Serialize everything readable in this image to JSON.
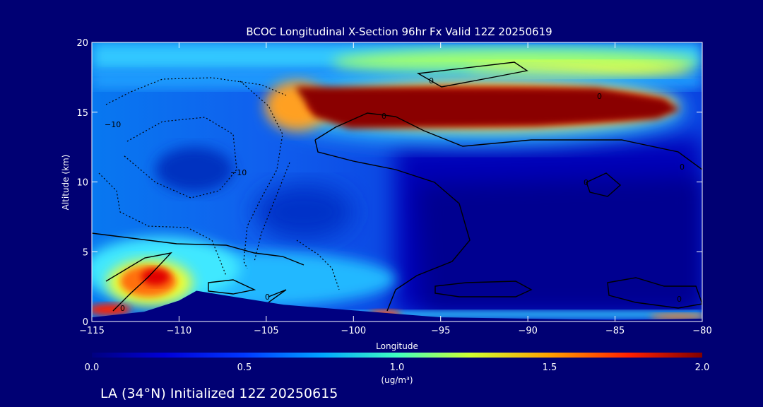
{
  "chart_data": {
    "type": "heatmap",
    "title": "BCOC Longitudinal X-Section 96hr  Fx Valid 12Z 20250619",
    "xlabel": "Longitude",
    "ylabel": "Altitude (km)",
    "xlim": [
      -115,
      -80
    ],
    "ylim": [
      0,
      20
    ],
    "x_ticks": [
      -115,
      -110,
      -105,
      -100,
      -95,
      -90,
      -85,
      -80
    ],
    "x_tick_labels": [
      "−115",
      "−110",
      "−105",
      "−100",
      "−95",
      "−90",
      "−85",
      "−80"
    ],
    "y_ticks": [
      0,
      5,
      10,
      15,
      20
    ],
    "y_tick_labels": [
      "0",
      "5",
      "10",
      "15",
      "20"
    ],
    "colorbar": {
      "min": 0.0,
      "max": 2.0,
      "ticks": [
        "0.0",
        "0.5",
        "1.0",
        "1.5",
        "2.0"
      ],
      "label": "(ug/m³)"
    },
    "contour_labels": [
      "0",
      "0",
      "0",
      "0",
      "−10",
      "−10",
      "0",
      "0",
      "0",
      "0"
    ],
    "features": [
      {
        "lon": [
          -103,
          -85
        ],
        "alt": [
          14,
          17
        ],
        "value": 2.0
      },
      {
        "lon": [
          -113,
          -109
        ],
        "alt": [
          1,
          4
        ],
        "value": 1.6
      },
      {
        "lon": [
          -110,
          -100
        ],
        "alt": [
          10,
          12
        ],
        "value": 0.3
      },
      {
        "lon": [
          -95,
          -80
        ],
        "alt": [
          1,
          12
        ],
        "value": 0.1
      }
    ],
    "terrain": [
      {
        "lon": -115,
        "alt": 0.3
      },
      {
        "lon": -112,
        "alt": 0.7
      },
      {
        "lon": -110,
        "alt": 1.5
      },
      {
        "lon": -109,
        "alt": 2.2
      },
      {
        "lon": -107,
        "alt": 1.8
      },
      {
        "lon": -104,
        "alt": 1.2
      },
      {
        "lon": -100,
        "alt": 0.8
      },
      {
        "lon": -95,
        "alt": 0.3
      },
      {
        "lon": -90,
        "alt": 0.2
      },
      {
        "lon": -85,
        "alt": 0.1
      },
      {
        "lon": -80,
        "alt": 0.2
      }
    ]
  },
  "footer": {
    "caption": "LA (34°N) Initialized 12Z 20250615"
  }
}
